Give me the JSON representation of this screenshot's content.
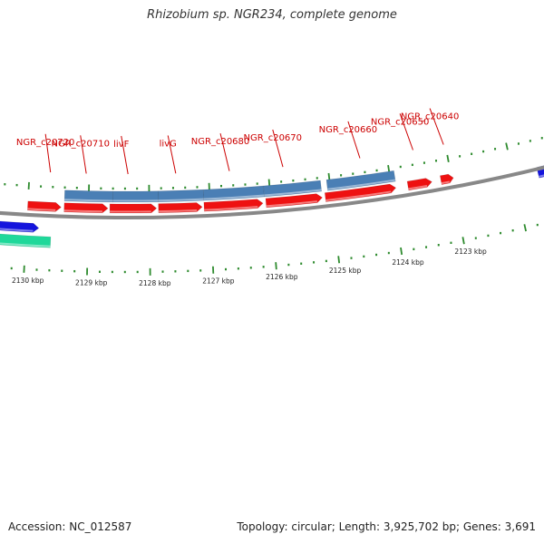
{
  "header": {
    "title": "Rhizobium sp. NGR234, complete genome"
  },
  "footer": {
    "accession": "Accession: NC_012587",
    "summary": "Topology: circular; Length: 3,925,702 bp; Genes: 3,691"
  },
  "colors": {
    "backbone": "#888888",
    "tick": "#2e8b2e",
    "cds": "#ee1111",
    "rna": "#4a7fb5",
    "blue_feature": "#1515dd",
    "teal_feature": "#1fd89a",
    "label": "#cc0000"
  },
  "map": {
    "ticks": [
      {
        "label": "2130 kbp",
        "kbp": 2130
      },
      {
        "label": "2129 kbp",
        "kbp": 2129
      },
      {
        "label": "2128 kbp",
        "kbp": 2128
      },
      {
        "label": "2127 kbp",
        "kbp": 2127
      },
      {
        "label": "2126 kbp",
        "kbp": 2126
      },
      {
        "label": "2125 kbp",
        "kbp": 2125
      },
      {
        "label": "2124 kbp",
        "kbp": 2124
      },
      {
        "label": "2123 kbp",
        "kbp": 2123
      }
    ],
    "genes": [
      {
        "label": "NGR_c20720"
      },
      {
        "label": "NGR_c20710"
      },
      {
        "label": "livF"
      },
      {
        "label": "livG"
      },
      {
        "label": "NGR_c20680"
      },
      {
        "label": "NGR_c20670"
      },
      {
        "label": "NGR_c20660"
      },
      {
        "label": "NGR_c20650"
      },
      {
        "label": "NGR_c20640"
      }
    ]
  }
}
